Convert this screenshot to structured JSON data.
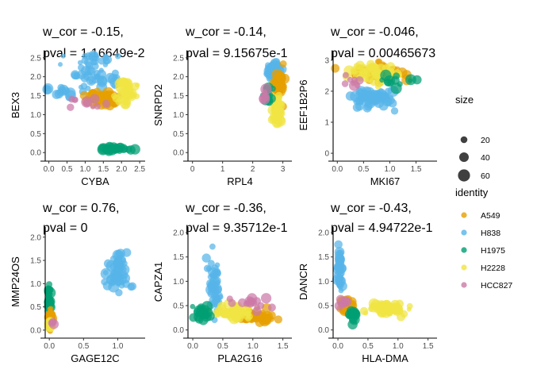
{
  "colors": {
    "A549": "#E69F00",
    "H838": "#56B4E9",
    "H1975": "#009E73",
    "H2228": "#F0E442",
    "HCC827": "#CC79A7"
  },
  "legend": {
    "size_title": "size",
    "size_entries": [
      {
        "label": "20",
        "value": 20
      },
      {
        "label": "40",
        "value": 40
      },
      {
        "label": "60",
        "value": 60
      }
    ],
    "identity_title": "identity",
    "identity_entries": [
      {
        "label": "A549",
        "color": "#E69F00"
      },
      {
        "label": "H838",
        "color": "#56B4E9"
      },
      {
        "label": "H1975",
        "color": "#009E73"
      },
      {
        "label": "H2228",
        "color": "#F0E442"
      },
      {
        "label": "HCC827",
        "color": "#CC79A7"
      }
    ]
  },
  "chart_data": [
    {
      "type": "scatter",
      "title_line1": "w_cor = -0.15,",
      "title_line2": "pval = 1.16649e-2",
      "xlabel": "CYBA",
      "ylabel": "BEX3",
      "xlim": [
        -0.1,
        2.65
      ],
      "ylim": [
        -0.1,
        2.6
      ],
      "xticks": [
        {
          "v": 0,
          "l": "0.0"
        },
        {
          "v": 0.5,
          "l": "0.5"
        },
        {
          "v": 1,
          "l": "1.0"
        },
        {
          "v": 1.5,
          "l": "1.5"
        },
        {
          "v": 2,
          "l": "2.0"
        },
        {
          "v": 2.5,
          "l": "2.5"
        }
      ],
      "yticks": [
        {
          "v": 0,
          "l": "0.0"
        },
        {
          "v": 0.5,
          "l": "0.5"
        },
        {
          "v": 1,
          "l": "1.0"
        },
        {
          "v": 1.5,
          "l": "1.5"
        },
        {
          "v": 2,
          "l": "2.0"
        },
        {
          "v": 2.5,
          "l": "2.5"
        }
      ],
      "series": [
        {
          "name": "H838",
          "x": [
            1.4,
            0.3,
            1.1,
            1.3
          ],
          "y": [
            1.95,
            1.6,
            2.15,
            2.5
          ],
          "sx": 0.5,
          "sy": 0.22,
          "n": 70
        },
        {
          "name": "A549",
          "x": [
            1.5
          ],
          "y": [
            1.4
          ],
          "sx": 0.45,
          "sy": 0.18,
          "n": 60
        },
        {
          "name": "H2228",
          "x": [
            2.1
          ],
          "y": [
            1.6
          ],
          "sx": 0.25,
          "sy": 0.28,
          "n": 45
        },
        {
          "name": "HCC827",
          "x": [
            1.0
          ],
          "y": [
            1.3
          ],
          "sx": 0.5,
          "sy": 0.15,
          "n": 10
        },
        {
          "name": "H1975",
          "x": [
            1.8
          ],
          "y": [
            0.1
          ],
          "sx": 0.35,
          "sy": 0.05,
          "n": 30
        }
      ]
    },
    {
      "type": "scatter",
      "title_line1": "w_cor = -0.14,",
      "title_line2": "pval = 9.15675e-1",
      "xlabel": "RPL4",
      "ylabel": "SNRPD2",
      "xlim": [
        -0.15,
        3.3
      ],
      "ylim": [
        -0.1,
        2.6
      ],
      "xticks": [
        {
          "v": 0,
          "l": "0"
        },
        {
          "v": 1,
          "l": "1"
        },
        {
          "v": 2,
          "l": "2"
        },
        {
          "v": 3,
          "l": "3"
        }
      ],
      "yticks": [
        {
          "v": 0,
          "l": "0.0"
        },
        {
          "v": 0.5,
          "l": "0.5"
        },
        {
          "v": 1,
          "l": "1.0"
        },
        {
          "v": 1.5,
          "l": "1.5"
        },
        {
          "v": 2,
          "l": "2.0"
        },
        {
          "v": 2.5,
          "l": "2.5"
        }
      ],
      "series": [
        {
          "name": "H838",
          "x": [
            2.7
          ],
          "y": [
            2.2
          ],
          "sx": 0.2,
          "sy": 0.2,
          "n": 45
        },
        {
          "name": "A549",
          "x": [
            2.9
          ],
          "y": [
            1.8
          ],
          "sx": 0.15,
          "sy": 0.3,
          "n": 45
        },
        {
          "name": "H2228",
          "x": [
            2.8
          ],
          "y": [
            1.1
          ],
          "sx": 0.18,
          "sy": 0.35,
          "n": 45
        },
        {
          "name": "H1975",
          "x": [
            2.5
          ],
          "y": [
            1.5
          ],
          "sx": 0.1,
          "sy": 0.2,
          "n": 15
        },
        {
          "name": "HCC827",
          "x": [
            2.4
          ],
          "y": [
            1.5
          ],
          "sx": 0.1,
          "sy": 0.2,
          "n": 5
        }
      ]
    },
    {
      "type": "scatter",
      "title_line1": "w_cor = -0.046,",
      "title_line2": "pval = 0.00465673",
      "xlabel": "MKI67",
      "ylabel": "EEF1B2P6",
      "xlim": [
        -0.08,
        1.9
      ],
      "ylim": [
        -0.1,
        3.2
      ],
      "xticks": [
        {
          "v": 0,
          "l": "0.0"
        },
        {
          "v": 0.5,
          "l": "0.5"
        },
        {
          "v": 1,
          "l": "1.0"
        },
        {
          "v": 1.5,
          "l": "1.5"
        }
      ],
      "yticks": [
        {
          "v": 0,
          "l": "0"
        },
        {
          "v": 1,
          "l": "1"
        },
        {
          "v": 2,
          "l": "2"
        },
        {
          "v": 3,
          "l": "3"
        }
      ],
      "series": [
        {
          "name": "H838",
          "x": [
            0.7
          ],
          "y": [
            1.8
          ],
          "sx": 0.35,
          "sy": 0.3,
          "n": 70
        },
        {
          "name": "A549",
          "x": [
            0.8
          ],
          "y": [
            2.6
          ],
          "sx": 0.5,
          "sy": 0.25,
          "n": 45
        },
        {
          "name": "H2228",
          "x": [
            0.7
          ],
          "y": [
            2.6
          ],
          "sx": 0.5,
          "sy": 0.3,
          "n": 45
        },
        {
          "name": "H1975",
          "x": [
            1.2
          ],
          "y": [
            2.3
          ],
          "sx": 0.4,
          "sy": 0.2,
          "n": 12
        },
        {
          "name": "HCC827",
          "x": [
            0.4
          ],
          "y": [
            2.4
          ],
          "sx": 0.3,
          "sy": 0.2,
          "n": 8
        }
      ]
    },
    {
      "type": "scatter",
      "title_line1": "w_cor = 0.76,",
      "title_line2": "pval = 0",
      "xlabel": "GAGE12C",
      "ylabel": "MMP24OS",
      "xlim": [
        -0.06,
        1.4
      ],
      "ylim": [
        -0.07,
        2.15
      ],
      "xticks": [
        {
          "v": 0,
          "l": "0.0"
        },
        {
          "v": 0.5,
          "l": "0.5"
        },
        {
          "v": 1,
          "l": "1.0"
        }
      ],
      "yticks": [
        {
          "v": 0,
          "l": "0.0"
        },
        {
          "v": 0.5,
          "l": "0.5"
        },
        {
          "v": 1,
          "l": "1.0"
        },
        {
          "v": 1.5,
          "l": "1.5"
        },
        {
          "v": 2,
          "l": "2.0"
        }
      ],
      "series": [
        {
          "name": "H838",
          "x": [
            1.0
          ],
          "y": [
            1.2
          ],
          "sx": 0.15,
          "sy": 0.35,
          "n": 55
        },
        {
          "name": "H1975",
          "x": [
            0.0
          ],
          "y": [
            0.6
          ],
          "sx": 0.02,
          "sy": 0.4,
          "n": 30
        },
        {
          "name": "A549",
          "x": [
            0.02
          ],
          "y": [
            0.25
          ],
          "sx": 0.02,
          "sy": 0.2,
          "n": 30
        },
        {
          "name": "H2228",
          "x": [
            0.01
          ],
          "y": [
            0.1
          ],
          "sx": 0.01,
          "sy": 0.08,
          "n": 20
        },
        {
          "name": "HCC827",
          "x": [
            0.05
          ],
          "y": [
            0.15
          ],
          "sx": 0.03,
          "sy": 0.05,
          "n": 3
        }
      ]
    },
    {
      "type": "scatter",
      "title_line1": "w_cor = -0.36,",
      "title_line2": "pval = 9.35712e-1",
      "xlabel": "PLA2G16",
      "ylabel": "CAPZA1",
      "xlim": [
        -0.08,
        1.65
      ],
      "ylim": [
        -0.07,
        2.05
      ],
      "xticks": [
        {
          "v": 0,
          "l": "0.0"
        },
        {
          "v": 0.5,
          "l": "0.5"
        },
        {
          "v": 1,
          "l": "1.0"
        },
        {
          "v": 1.5,
          "l": "1.5"
        }
      ],
      "yticks": [
        {
          "v": 0,
          "l": "0.0"
        },
        {
          "v": 0.5,
          "l": "0.5"
        },
        {
          "v": 1,
          "l": "1.0"
        },
        {
          "v": 1.5,
          "l": "1.5"
        },
        {
          "v": 2,
          "l": "2.0"
        }
      ],
      "series": [
        {
          "name": "A549",
          "x": [
            1.05
          ],
          "y": [
            0.28
          ],
          "sx": 0.25,
          "sy": 0.1,
          "n": 60
        },
        {
          "name": "H838",
          "x": [
            0.35
          ],
          "y": [
            0.9
          ],
          "sx": 0.1,
          "sy": 0.45,
          "n": 45
        },
        {
          "name": "H2228",
          "x": [
            0.65
          ],
          "y": [
            0.35
          ],
          "sx": 0.35,
          "sy": 0.12,
          "n": 45
        },
        {
          "name": "H1975",
          "x": [
            0.15
          ],
          "y": [
            0.35
          ],
          "sx": 0.12,
          "sy": 0.15,
          "n": 25
        },
        {
          "name": "HCC827",
          "x": [
            1.0
          ],
          "y": [
            0.55
          ],
          "sx": 0.3,
          "sy": 0.12,
          "n": 15
        }
      ]
    },
    {
      "type": "scatter",
      "title_line1": "w_cor = -0.43,",
      "title_line2": "pval = 4.94722e-1",
      "xlabel": "HLA-DMA",
      "ylabel": "DANCR",
      "xlim": [
        -0.08,
        1.65
      ],
      "ylim": [
        -0.07,
        2.05
      ],
      "xticks": [
        {
          "v": 0,
          "l": "0.0"
        },
        {
          "v": 0.5,
          "l": "0.5"
        },
        {
          "v": 1,
          "l": "1.0"
        },
        {
          "v": 1.5,
          "l": "1.5"
        }
      ],
      "yticks": [
        {
          "v": 0,
          "l": "0.0"
        },
        {
          "v": 0.5,
          "l": "0.5"
        },
        {
          "v": 1,
          "l": "1.0"
        },
        {
          "v": 1.5,
          "l": "1.5"
        },
        {
          "v": 2,
          "l": "2.0"
        }
      ],
      "series": [
        {
          "name": "H838",
          "x": [
            0.03
          ],
          "y": [
            1.25
          ],
          "sx": 0.03,
          "sy": 0.4,
          "n": 45
        },
        {
          "name": "H2228",
          "x": [
            0.8
          ],
          "y": [
            0.45
          ],
          "sx": 0.35,
          "sy": 0.1,
          "n": 55
        },
        {
          "name": "A549",
          "x": [
            0.15
          ],
          "y": [
            0.5
          ],
          "sx": 0.1,
          "sy": 0.15,
          "n": 45
        },
        {
          "name": "H1975",
          "x": [
            0.25
          ],
          "y": [
            0.35
          ],
          "sx": 0.12,
          "sy": 0.12,
          "n": 20
        },
        {
          "name": "HCC827",
          "x": [
            0.1
          ],
          "y": [
            0.6
          ],
          "sx": 0.08,
          "sy": 0.1,
          "n": 8
        }
      ]
    }
  ]
}
